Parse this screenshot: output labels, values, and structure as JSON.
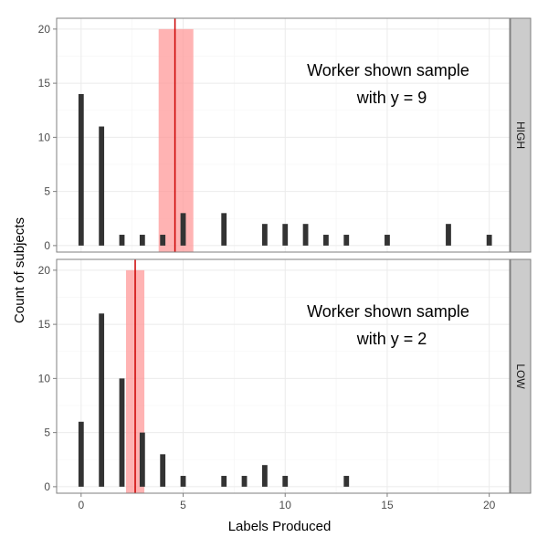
{
  "chart_data": {
    "type": "bar",
    "xlabel": "Labels Produced",
    "ylabel": "Count of subjects",
    "xlim": [
      -1.2,
      21
    ],
    "ylim": [
      -0.6,
      21
    ],
    "x_ticks": [
      0,
      5,
      10,
      15,
      20
    ],
    "y_ticks": [
      0,
      5,
      10,
      15,
      20
    ],
    "grid": true,
    "facets": [
      {
        "strip": "HIGH",
        "annotation": [
          "Worker shown sample",
          "with y = 9"
        ],
        "mean_line": 4.6,
        "ci_band": [
          3.8,
          5.5
        ],
        "bars": [
          {
            "x": 0,
            "count": 14
          },
          {
            "x": 1,
            "count": 11
          },
          {
            "x": 2,
            "count": 1
          },
          {
            "x": 3,
            "count": 1
          },
          {
            "x": 4,
            "count": 1
          },
          {
            "x": 5,
            "count": 3
          },
          {
            "x": 7,
            "count": 3
          },
          {
            "x": 9,
            "count": 2
          },
          {
            "x": 10,
            "count": 2
          },
          {
            "x": 11,
            "count": 2
          },
          {
            "x": 12,
            "count": 1
          },
          {
            "x": 13,
            "count": 1
          },
          {
            "x": 15,
            "count": 1
          },
          {
            "x": 18,
            "count": 2
          },
          {
            "x": 20,
            "count": 1
          }
        ]
      },
      {
        "strip": "LOW",
        "annotation": [
          "Worker shown sample",
          "with y = 2"
        ],
        "mean_line": 2.65,
        "ci_band": [
          2.2,
          3.1
        ],
        "bars": [
          {
            "x": 0,
            "count": 6
          },
          {
            "x": 1,
            "count": 16
          },
          {
            "x": 2,
            "count": 10
          },
          {
            "x": 3,
            "count": 5
          },
          {
            "x": 4,
            "count": 3
          },
          {
            "x": 5,
            "count": 1
          },
          {
            "x": 7,
            "count": 1
          },
          {
            "x": 8,
            "count": 1
          },
          {
            "x": 9,
            "count": 2
          },
          {
            "x": 10,
            "count": 1
          },
          {
            "x": 13,
            "count": 1
          }
        ]
      }
    ],
    "colors": {
      "bar": "#333333",
      "mean_line": "#cc0000",
      "ci_band": "#ff9999",
      "strip_bg": "#cccccc",
      "grid": "#ebebeb"
    }
  }
}
